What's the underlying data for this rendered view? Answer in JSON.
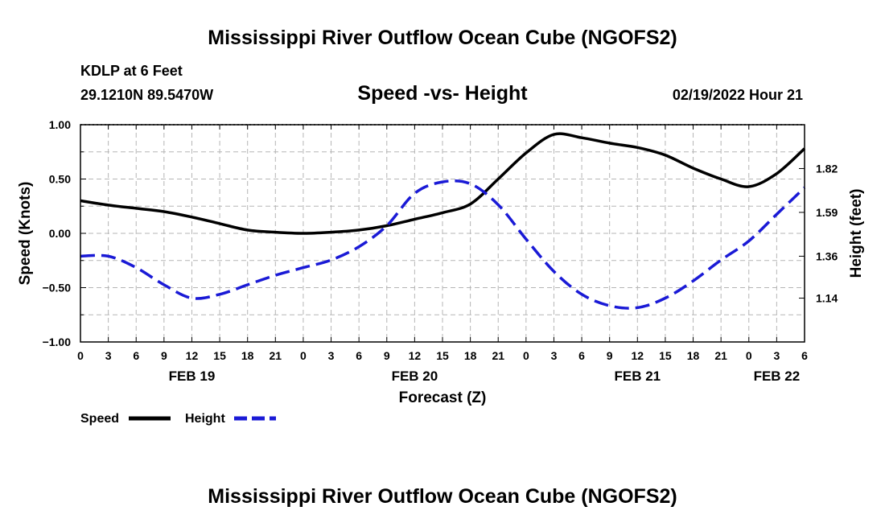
{
  "page": {
    "title": "Mississippi River Outflow Ocean Cube (NGOFS2)",
    "footer_title": "Mississippi River Outflow Ocean Cube (NGOFS2)"
  },
  "header": {
    "station": "KDLP at 6 Feet",
    "coords": "29.1210N  89.5470W",
    "plot_title": "Speed -vs- Height",
    "datetime": "02/19/2022 Hour 21"
  },
  "colors": {
    "speed": "#000000",
    "height": "#1a1ad6",
    "grid": "#b5b5b5"
  },
  "chart_data": {
    "type": "line",
    "title": "Speed -vs- Height",
    "xlabel": "Forecast (Z)",
    "ylabel": "Speed (Knots)",
    "ylabel_right": "Height (feet)",
    "xlim": [
      0,
      78
    ],
    "ylim": [
      -1.0,
      1.0
    ],
    "ylim_right": [
      0.91,
      2.05
    ],
    "x_ticks": [
      0,
      3,
      6,
      9,
      12,
      15,
      18,
      21,
      24,
      27,
      30,
      33,
      36,
      39,
      42,
      45,
      48,
      51,
      54,
      57,
      60,
      63,
      66,
      69,
      72,
      75,
      78
    ],
    "x_tick_labels": [
      "0",
      "3",
      "6",
      "9",
      "12",
      "15",
      "18",
      "21",
      "0",
      "3",
      "6",
      "9",
      "12",
      "15",
      "18",
      "21",
      "0",
      "3",
      "6",
      "9",
      "12",
      "15",
      "18",
      "21",
      "0",
      "3",
      "6"
    ],
    "y_ticks": [
      -1.0,
      -0.5,
      0.0,
      0.5,
      1.0
    ],
    "y_tick_labels": [
      "−1.00",
      "−0.50",
      "0.00",
      "0.50",
      "1.00"
    ],
    "y_right_ticks": [
      1.14,
      1.36,
      1.59,
      1.82
    ],
    "y_right_tick_labels": [
      "1.14",
      "1.36",
      "1.59",
      "1.82"
    ],
    "date_labels": [
      {
        "x": 12,
        "label": "FEB 19"
      },
      {
        "x": 36,
        "label": "FEB 20"
      },
      {
        "x": 60,
        "label": "FEB 21"
      },
      {
        "x": 75,
        "label": "FEB 22"
      }
    ],
    "grid": true,
    "legend": "bottom-left",
    "series": [
      {
        "name": "Speed",
        "axis": "left",
        "style": "solid",
        "x": [
          0,
          3,
          6,
          9,
          12,
          15,
          18,
          21,
          24,
          27,
          30,
          33,
          36,
          39,
          42,
          45,
          48,
          51,
          54,
          57,
          60,
          63,
          66,
          69,
          72,
          75,
          78
        ],
        "values": [
          0.3,
          0.26,
          0.23,
          0.2,
          0.15,
          0.09,
          0.03,
          0.01,
          0.0,
          0.01,
          0.03,
          0.07,
          0.13,
          0.19,
          0.27,
          0.5,
          0.74,
          0.91,
          0.88,
          0.83,
          0.79,
          0.72,
          0.6,
          0.5,
          0.43,
          0.55,
          0.78
        ]
      },
      {
        "name": "Height",
        "axis": "right",
        "style": "dashed",
        "x": [
          0,
          3,
          6,
          9,
          12,
          15,
          18,
          21,
          24,
          27,
          30,
          33,
          36,
          39,
          42,
          45,
          48,
          51,
          54,
          57,
          60,
          63,
          66,
          69,
          72,
          75,
          78
        ],
        "values": [
          1.36,
          1.36,
          1.3,
          1.21,
          1.14,
          1.16,
          1.21,
          1.26,
          1.3,
          1.34,
          1.41,
          1.52,
          1.69,
          1.75,
          1.74,
          1.63,
          1.45,
          1.28,
          1.16,
          1.1,
          1.09,
          1.14,
          1.23,
          1.34,
          1.44,
          1.58,
          1.72
        ]
      }
    ]
  }
}
